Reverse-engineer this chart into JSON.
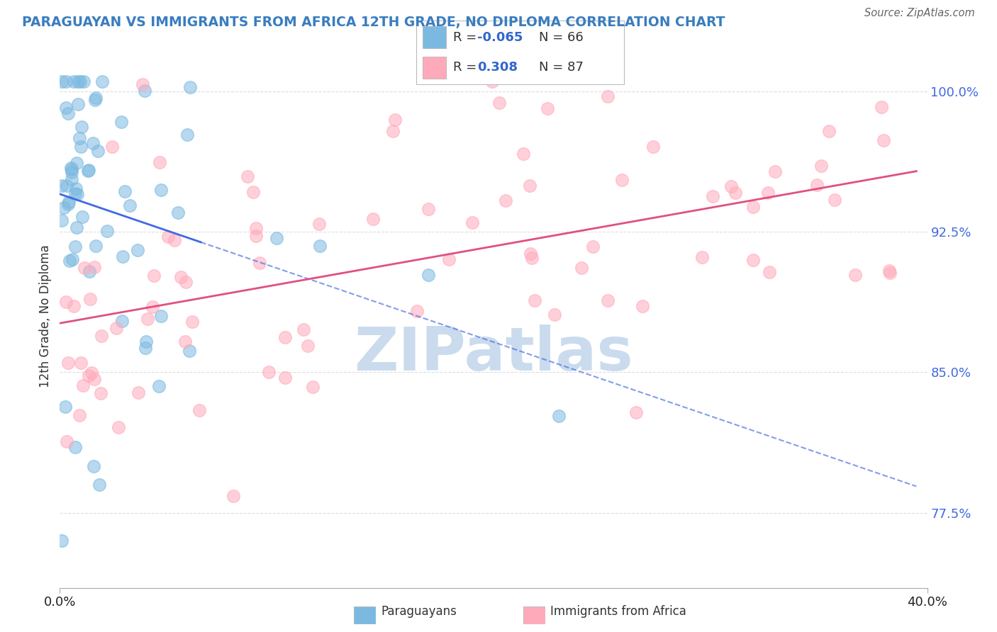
{
  "title": "PARAGUAYAN VS IMMIGRANTS FROM AFRICA 12TH GRADE, NO DIPLOMA CORRELATION CHART",
  "source": "Source: ZipAtlas.com",
  "ylabel": "12th Grade, No Diploma",
  "x_min": 0.0,
  "x_max": 0.4,
  "y_min": 0.735,
  "y_max": 1.025,
  "x_tick_labels": [
    "0.0%",
    "40.0%"
  ],
  "x_tick_vals": [
    0.0,
    0.4
  ],
  "y_tick_labels": [
    "77.5%",
    "85.0%",
    "92.5%",
    "100.0%"
  ],
  "y_ticks": [
    0.775,
    0.85,
    0.925,
    1.0
  ],
  "r1": -0.065,
  "n1": 66,
  "r2": 0.308,
  "n2": 87,
  "color_paraguayan": "#7cb9e0",
  "color_africa": "#ffaabb",
  "color_line1": "#4169e1",
  "color_line2": "#e05080",
  "color_title": "#3a7dbf",
  "color_source": "#666666",
  "color_ytick": "#4169e1",
  "watermark": "ZIPatlas",
  "watermark_color": "#c5d8ed",
  "bottom_legend_labels": [
    "Paraguayans",
    "Immigrants from Africa"
  ]
}
